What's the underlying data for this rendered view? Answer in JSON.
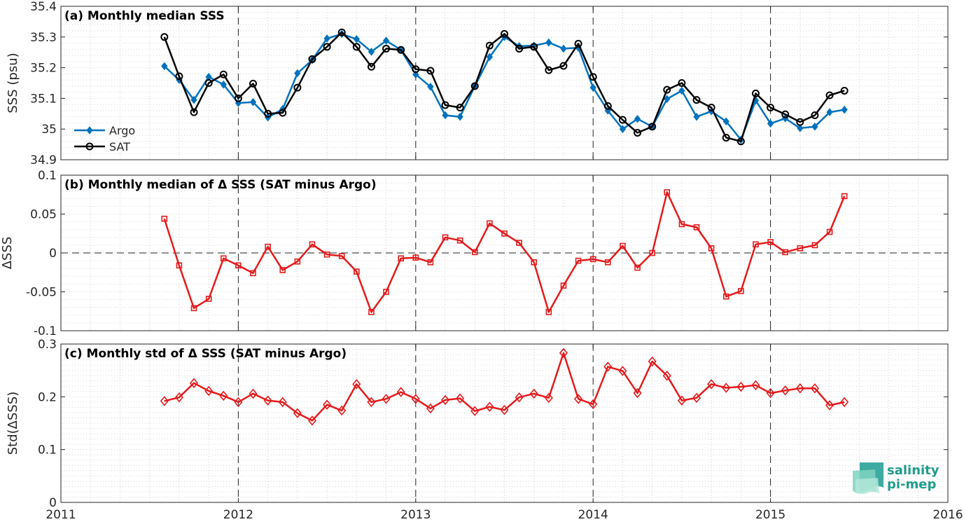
{
  "x_ticks": [
    "2011",
    "2012",
    "2013",
    "2014",
    "2015",
    "2016"
  ],
  "logo": {
    "line1": "salinity",
    "line2": "pi-mep"
  },
  "colors": {
    "argo": "#0072BD",
    "sat": "#000000",
    "delta": "#E41A1C",
    "logo": "#1f9c8c"
  },
  "chart_data": [
    {
      "type": "line",
      "title": "(a) Monthly median SSS",
      "xlabel": "",
      "ylabel": "SSS (psu)",
      "xlim": [
        2011,
        2016
      ],
      "ylim": [
        34.9,
        35.4
      ],
      "y_ticks": [
        "34.9",
        "35",
        "35.1",
        "35.2",
        "35.3",
        "35.4"
      ],
      "legend": "bottom-left",
      "grid": true,
      "x": [
        "2011-08",
        "2011-09",
        "2011-10",
        "2011-11",
        "2011-12",
        "2012-01",
        "2012-02",
        "2012-03",
        "2012-04",
        "2012-05",
        "2012-06",
        "2012-07",
        "2012-08",
        "2012-09",
        "2012-10",
        "2012-11",
        "2012-12",
        "2013-01",
        "2013-02",
        "2013-03",
        "2013-04",
        "2013-05",
        "2013-06",
        "2013-07",
        "2013-08",
        "2013-09",
        "2013-10",
        "2013-11",
        "2013-12",
        "2014-01",
        "2014-02",
        "2014-03",
        "2014-04",
        "2014-05",
        "2014-06",
        "2014-07",
        "2014-08",
        "2014-09",
        "2014-10",
        "2014-11",
        "2014-12",
        "2015-01",
        "2015-02",
        "2015-03",
        "2015-04",
        "2015-05",
        "2015-06"
      ],
      "series": [
        {
          "name": "Argo",
          "marker": "diamond",
          "values": [
            35.205,
            35.16,
            35.095,
            35.17,
            35.145,
            35.085,
            35.088,
            35.038,
            35.065,
            35.182,
            35.225,
            35.295,
            35.31,
            35.293,
            35.252,
            35.288,
            35.258,
            35.178,
            35.138,
            35.045,
            35.04,
            35.14,
            35.235,
            35.3,
            35.27,
            35.272,
            35.282,
            35.262,
            35.265,
            35.135,
            35.06,
            35.0,
            35.033,
            35.008,
            35.098,
            35.125,
            35.04,
            35.058,
            35.025,
            34.965,
            35.093,
            35.018,
            35.035,
            35.003,
            35.008,
            35.055,
            35.063
          ]
        },
        {
          "name": "SAT",
          "marker": "circle",
          "values": [
            35.3,
            35.172,
            35.055,
            35.15,
            35.178,
            35.1,
            35.148,
            35.05,
            35.053,
            35.135,
            35.228,
            35.268,
            35.315,
            35.268,
            35.203,
            35.262,
            35.258,
            35.195,
            35.19,
            35.078,
            35.07,
            35.14,
            35.272,
            35.31,
            35.262,
            35.268,
            35.192,
            35.206,
            35.278,
            35.17,
            35.075,
            35.03,
            34.988,
            35.008,
            35.128,
            35.15,
            35.095,
            35.07,
            34.972,
            34.96,
            35.116,
            35.07,
            35.048,
            35.023,
            35.045,
            35.11,
            35.125
          ]
        }
      ]
    },
    {
      "type": "line",
      "title": "(b) Monthly median of Δ SSS (SAT minus Argo)",
      "xlabel": "",
      "ylabel": "ΔSSS",
      "xlim": [
        2011,
        2016
      ],
      "ylim": [
        -0.1,
        0.1
      ],
      "y_ticks": [
        "-0.1",
        "-0.05",
        "0",
        "0.05",
        "0.1"
      ],
      "zero_line": true,
      "grid": true,
      "series": [
        {
          "name": "",
          "marker": "square",
          "values": [
            0.044,
            -0.016,
            -0.071,
            -0.059,
            -0.007,
            -0.016,
            -0.026,
            0.008,
            -0.022,
            -0.011,
            0.011,
            -0.002,
            -0.004,
            -0.024,
            -0.076,
            -0.05,
            -0.007,
            -0.006,
            -0.012,
            0.02,
            0.016,
            0.001,
            0.038,
            0.025,
            0.013,
            -0.012,
            -0.076,
            -0.042,
            -0.01,
            -0.008,
            -0.012,
            0.009,
            -0.019,
            0.0,
            0.078,
            0.037,
            0.033,
            0.006,
            -0.056,
            -0.049,
            0.011,
            0.014,
            0.001,
            0.006,
            0.01,
            0.027,
            0.073
          ]
        }
      ]
    },
    {
      "type": "line",
      "title": "(c) Monthly std of Δ SSS (SAT minus Argo)",
      "xlabel": "",
      "ylabel": "Std(ΔSSS)",
      "xlim": [
        2011,
        2016
      ],
      "ylim": [
        0,
        0.3
      ],
      "y_ticks": [
        "0",
        "0.1",
        "0.2",
        "0.3"
      ],
      "grid": true,
      "series": [
        {
          "name": "",
          "marker": "diamond",
          "values": [
            0.192,
            0.199,
            0.226,
            0.211,
            0.202,
            0.19,
            0.206,
            0.193,
            0.19,
            0.169,
            0.155,
            0.185,
            0.174,
            0.224,
            0.19,
            0.196,
            0.209,
            0.196,
            0.178,
            0.194,
            0.197,
            0.173,
            0.181,
            0.175,
            0.199,
            0.206,
            0.198,
            0.283,
            0.196,
            0.186,
            0.257,
            0.249,
            0.207,
            0.267,
            0.24,
            0.193,
            0.198,
            0.224,
            0.217,
            0.219,
            0.222,
            0.207,
            0.212,
            0.216,
            0.216,
            0.184,
            0.19
          ]
        }
      ]
    }
  ]
}
